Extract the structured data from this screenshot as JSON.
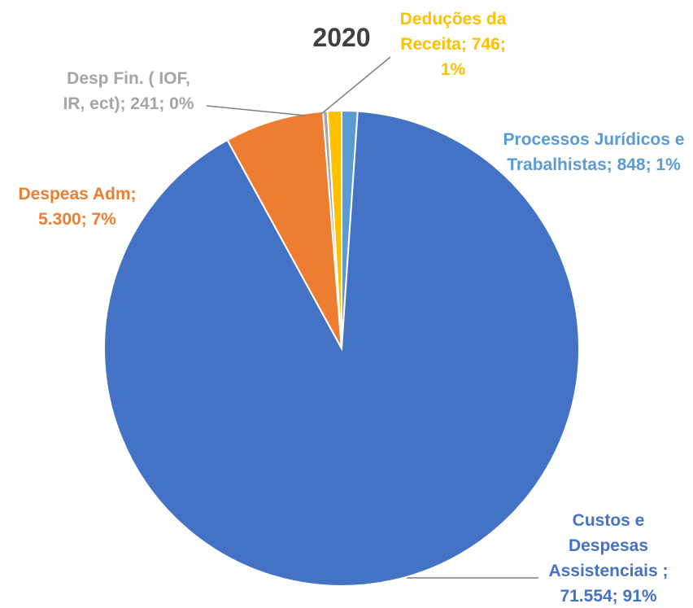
{
  "chart_data": {
    "type": "pie",
    "title": "2020",
    "slices": [
      {
        "category": "Processos Jurídicos e Trabalhistas",
        "value": 848,
        "percent": "1%",
        "color": "#5B9BD5",
        "label_lines": [
          "Processos Jurídicos e",
          "Trabalhistas; 848; 1%"
        ]
      },
      {
        "category": "Custos e Despesas Assistenciais",
        "value": 71554,
        "percent": "91%",
        "color": "#4472C4",
        "label_lines": [
          "Custos e",
          "Despesas",
          "Assistenciais ;",
          "71.554; 91%"
        ]
      },
      {
        "category": "Despeas Adm",
        "value": 5300,
        "percent": "7%",
        "color": "#ED7D31",
        "label_lines": [
          "Despeas Adm;",
          "5.300; 7%"
        ]
      },
      {
        "category": "Desp Fin. ( IOF, IR, ect)",
        "value": 241,
        "percent": "0%",
        "color": "#A5A5A5",
        "label_lines": [
          "Desp Fin. ( IOF,",
          "IR, ect); 241; 0%"
        ]
      },
      {
        "category": "Deduções da Receita",
        "value": 746,
        "percent": "1%",
        "color": "#FFC000",
        "label_lines": [
          "Deduções da",
          "Receita; 746;",
          "1%"
        ]
      }
    ],
    "legend": "none",
    "title_color": "#404040"
  }
}
